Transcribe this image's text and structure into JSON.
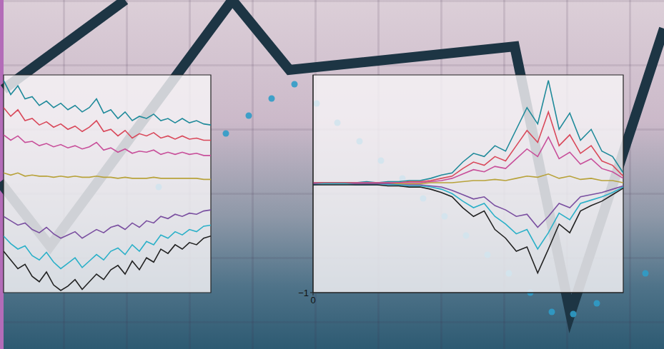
{
  "chart_data": [
    {
      "type": "line",
      "x": [
        0,
        70,
        325,
        405,
        720,
        798,
        929
      ],
      "values": [
        234,
        144,
        489,
        391,
        424,
        49,
        449
      ],
      "color": "#1d3544",
      "xlim": [
        0,
        929
      ],
      "ylim": [
        0,
        489
      ],
      "tick_labels": false
    },
    {
      "type": "line",
      "x": [
        5,
        175
      ],
      "values": [
        364,
        489
      ],
      "color": "#1d3544",
      "xlim": [
        0,
        929
      ],
      "ylim": [
        0,
        489
      ],
      "tick_labels": false
    },
    {
      "type": "scatter",
      "x": [
        222,
        316,
        348,
        380,
        412,
        443,
        472,
        503,
        533,
        563,
        592,
        622,
        652,
        682,
        712,
        742,
        772,
        802,
        835,
        903
      ],
      "values": [
        227,
        302,
        327,
        351,
        371,
        344,
        317,
        291,
        264,
        239,
        211,
        186,
        159,
        132,
        106,
        79,
        52,
        49,
        64,
        106
      ],
      "color": "#2f9cc8",
      "xlim": [
        0,
        929
      ],
      "ylim": [
        0,
        489
      ],
      "tick_labels": false
    },
    {
      "type": "line",
      "x": [
        0,
        1,
        2,
        3,
        4,
        5,
        6,
        7,
        8,
        9,
        10,
        11,
        12,
        13,
        14,
        15,
        16,
        17,
        18,
        19,
        20,
        21,
        22,
        23,
        24,
        25,
        26,
        27,
        28,
        29
      ],
      "xlim": [
        0,
        29
      ],
      "ylim": [
        -1,
        1
      ],
      "tick_labels": false,
      "series": [
        {
          "color": "#1f8a9a",
          "values": [
            0.95,
            0.82,
            0.9,
            0.78,
            0.8,
            0.72,
            0.76,
            0.7,
            0.74,
            0.68,
            0.72,
            0.66,
            0.7,
            0.78,
            0.65,
            0.68,
            0.6,
            0.66,
            0.58,
            0.62,
            0.6,
            0.64,
            0.58,
            0.6,
            0.56,
            0.6,
            0.56,
            0.58,
            0.55,
            0.54
          ]
        },
        {
          "color": "#d9485a",
          "values": [
            0.7,
            0.62,
            0.68,
            0.58,
            0.6,
            0.54,
            0.57,
            0.52,
            0.55,
            0.5,
            0.53,
            0.48,
            0.52,
            0.58,
            0.48,
            0.5,
            0.44,
            0.49,
            0.42,
            0.46,
            0.44,
            0.47,
            0.42,
            0.44,
            0.41,
            0.44,
            0.41,
            0.42,
            0.4,
            0.4
          ]
        },
        {
          "color": "#c84f9a",
          "values": [
            0.45,
            0.4,
            0.44,
            0.38,
            0.39,
            0.35,
            0.37,
            0.34,
            0.36,
            0.33,
            0.35,
            0.32,
            0.34,
            0.38,
            0.31,
            0.33,
            0.29,
            0.32,
            0.28,
            0.3,
            0.29,
            0.31,
            0.27,
            0.29,
            0.27,
            0.29,
            0.27,
            0.28,
            0.26,
            0.26
          ]
        },
        {
          "color": "#b8a23a",
          "values": [
            0.1,
            0.08,
            0.1,
            0.07,
            0.08,
            0.07,
            0.07,
            0.06,
            0.07,
            0.06,
            0.07,
            0.06,
            0.06,
            0.07,
            0.06,
            0.06,
            0.05,
            0.06,
            0.05,
            0.05,
            0.05,
            0.06,
            0.05,
            0.05,
            0.05,
            0.05,
            0.05,
            0.05,
            0.04,
            0.04
          ]
        },
        {
          "color": "#7a4fa0",
          "values": [
            -0.3,
            -0.34,
            -0.38,
            -0.36,
            -0.42,
            -0.45,
            -0.4,
            -0.46,
            -0.5,
            -0.47,
            -0.44,
            -0.5,
            -0.46,
            -0.42,
            -0.45,
            -0.4,
            -0.38,
            -0.42,
            -0.36,
            -0.4,
            -0.34,
            -0.36,
            -0.3,
            -0.32,
            -0.28,
            -0.3,
            -0.27,
            -0.28,
            -0.25,
            -0.24
          ]
        },
        {
          "color": "#2ab0c8",
          "values": [
            -0.48,
            -0.55,
            -0.6,
            -0.57,
            -0.66,
            -0.7,
            -0.63,
            -0.72,
            -0.78,
            -0.73,
            -0.68,
            -0.77,
            -0.71,
            -0.65,
            -0.7,
            -0.62,
            -0.59,
            -0.65,
            -0.56,
            -0.62,
            -0.53,
            -0.56,
            -0.47,
            -0.5,
            -0.44,
            -0.47,
            -0.42,
            -0.44,
            -0.39,
            -0.38
          ]
        },
        {
          "color": "#222222",
          "values": [
            -0.62,
            -0.7,
            -0.78,
            -0.74,
            -0.85,
            -0.9,
            -0.81,
            -0.93,
            -0.98,
            -0.94,
            -0.88,
            -0.97,
            -0.9,
            -0.83,
            -0.88,
            -0.79,
            -0.75,
            -0.83,
            -0.71,
            -0.79,
            -0.68,
            -0.72,
            -0.6,
            -0.64,
            -0.56,
            -0.6,
            -0.54,
            -0.56,
            -0.5,
            -0.48
          ]
        }
      ]
    },
    {
      "type": "line",
      "x": [
        0,
        1,
        2,
        3,
        4,
        5,
        6,
        7,
        8,
        9,
        10,
        11,
        12,
        13,
        14,
        15,
        16,
        17,
        18,
        19,
        20,
        21,
        22,
        23,
        24,
        25,
        26,
        27,
        28,
        29
      ],
      "xlim": [
        0,
        29
      ],
      "ylim": [
        -1,
        1
      ],
      "xticks": [
        0
      ],
      "yticks": [
        {
          "value": -1,
          "label": "−1"
        }
      ],
      "series": [
        {
          "color": "#1f8a9a",
          "values": [
            0.01,
            0.01,
            0.01,
            0.01,
            0.01,
            0.02,
            0.01,
            0.02,
            0.02,
            0.03,
            0.03,
            0.05,
            0.08,
            0.1,
            0.2,
            0.28,
            0.25,
            0.35,
            0.3,
            0.5,
            0.7,
            0.55,
            0.95,
            0.5,
            0.65,
            0.4,
            0.5,
            0.3,
            0.25,
            0.1
          ]
        },
        {
          "color": "#d9485a",
          "values": [
            0.01,
            0.01,
            0.01,
            0.01,
            0.01,
            0.01,
            0.01,
            0.01,
            0.01,
            0.02,
            0.02,
            0.03,
            0.05,
            0.07,
            0.14,
            0.2,
            0.17,
            0.25,
            0.21,
            0.35,
            0.49,
            0.38,
            0.66,
            0.35,
            0.45,
            0.28,
            0.35,
            0.21,
            0.17,
            0.07
          ]
        },
        {
          "color": "#c84f9a",
          "values": [
            0.01,
            0,
            0,
            0,
            0.01,
            0.01,
            0.01,
            0.01,
            0.01,
            0.01,
            0.01,
            0.02,
            0.03,
            0.05,
            0.09,
            0.13,
            0.11,
            0.16,
            0.14,
            0.23,
            0.32,
            0.25,
            0.43,
            0.23,
            0.29,
            0.18,
            0.23,
            0.14,
            0.11,
            0.05
          ]
        },
        {
          "color": "#b8a23a",
          "values": [
            0,
            0,
            0,
            0,
            0,
            0,
            0,
            0,
            0,
            0,
            0,
            0.01,
            0.01,
            0.01,
            0.02,
            0.03,
            0.03,
            0.04,
            0.03,
            0.05,
            0.07,
            0.06,
            0.09,
            0.05,
            0.07,
            0.04,
            0.05,
            0.03,
            0.03,
            0.01
          ]
        },
        {
          "color": "#7a4fa0",
          "values": [
            0,
            0,
            0,
            0,
            0,
            0,
            0,
            0,
            -0.01,
            -0.01,
            -0.01,
            -0.02,
            -0.03,
            -0.06,
            -0.1,
            -0.14,
            -0.12,
            -0.2,
            -0.24,
            -0.3,
            -0.28,
            -0.4,
            -0.3,
            -0.18,
            -0.22,
            -0.12,
            -0.1,
            -0.08,
            -0.05,
            -0.02
          ]
        },
        {
          "color": "#2ab0c8",
          "values": [
            -0.01,
            0,
            0,
            0,
            -0.01,
            -0.01,
            -0.01,
            -0.01,
            -0.01,
            -0.02,
            -0.02,
            -0.03,
            -0.05,
            -0.09,
            -0.16,
            -0.22,
            -0.18,
            -0.3,
            -0.37,
            -0.46,
            -0.42,
            -0.6,
            -0.45,
            -0.27,
            -0.33,
            -0.18,
            -0.15,
            -0.12,
            -0.08,
            -0.03
          ]
        },
        {
          "color": "#222222",
          "values": [
            -0.01,
            -0.01,
            -0.01,
            -0.01,
            -0.01,
            -0.01,
            -0.01,
            -0.02,
            -0.02,
            -0.03,
            -0.03,
            -0.05,
            -0.08,
            -0.12,
            -0.22,
            -0.3,
            -0.25,
            -0.42,
            -0.5,
            -0.62,
            -0.58,
            -0.82,
            -0.6,
            -0.37,
            -0.45,
            -0.25,
            -0.2,
            -0.16,
            -0.1,
            -0.04
          ]
        }
      ]
    }
  ]
}
